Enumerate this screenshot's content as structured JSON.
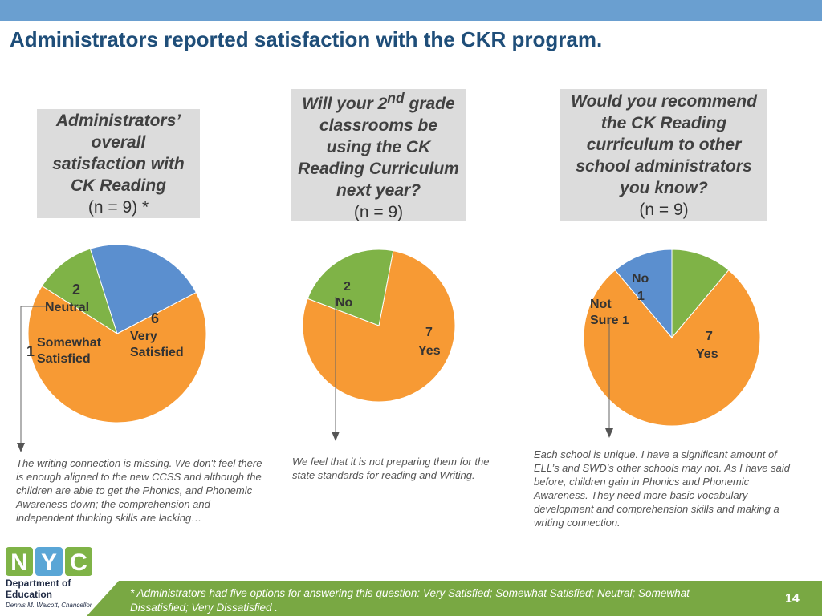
{
  "title": "Administrators reported satisfaction with the CKR program.",
  "questions": [
    {
      "lines": [
        "Administrators’",
        "overall",
        "satisfaction with",
        "CK Reading"
      ],
      "n": "(n = 9) *"
    },
    {
      "lines_html": [
        "Will your 2<sup>nd</sup> grade",
        "classrooms be",
        "using the CK",
        "Reading Curriculum",
        "next year?"
      ],
      "n": "(n = 9)"
    },
    {
      "lines": [
        "Would you recommend",
        "the CK Reading",
        "curriculum to other",
        "school administrators",
        "you know?"
      ],
      "n": "(n = 9)"
    }
  ],
  "chart_data": [
    {
      "type": "pie",
      "title": "Administrators’ overall satisfaction with CK Reading (n = 9) *",
      "slices": [
        {
          "label": "Very Satisfied",
          "value": 6,
          "color": "#f79a34"
        },
        {
          "label": "Somewhat Satisfied",
          "value": 1,
          "color": "#7fb347"
        },
        {
          "label": "Neutral",
          "value": 2,
          "color": "#5b8fcf"
        }
      ]
    },
    {
      "type": "pie",
      "title": "Will your 2nd grade classrooms be using the CK Reading Curriculum next year? (n = 9)",
      "slices": [
        {
          "label": "Yes",
          "value": 7,
          "color": "#f79a34"
        },
        {
          "label": "No",
          "value": 2,
          "color": "#7fb347"
        }
      ]
    },
    {
      "type": "pie",
      "title": "Would you recommend the CK Reading curriculum to other school administrators you know? (n = 9)",
      "slices": [
        {
          "label": "Yes",
          "value": 7,
          "color": "#f79a34"
        },
        {
          "label": "Not Sure",
          "value": 1,
          "color": "#5b8fcf"
        },
        {
          "label": "No",
          "value": 1,
          "color": "#7fb347"
        }
      ]
    }
  ],
  "pie_labels": {
    "p1_neutral_n": "2",
    "p1_neutral": "Neutral",
    "p1_vs_n": "6",
    "p1_vs_1": "Very",
    "p1_vs_2": "Satisfied",
    "p1_ss_n": "1",
    "p1_ss_1": "Somewhat",
    "p1_ss_2": "Satisfied",
    "p2_no_n": "2",
    "p2_no": "No",
    "p2_yes_n": "7",
    "p2_yes": "Yes",
    "p3_no": "No",
    "p3_no_n": "1",
    "p3_ns_1": "Not",
    "p3_ns_2": "Sure",
    "p3_ns_n": "1",
    "p3_yes_n": "7",
    "p3_yes": "Yes"
  },
  "comments": {
    "c1": "The writing connection is missing. We don't feel there is enough aligned to the new CCSS and although the children are able to get the Phonics, and Phonemic Awareness down; the comprehension and independent thinking skills are lacking…",
    "c2": "We feel that it is not preparing them for the state standards for reading and Writing.",
    "c3": "Each school is unique. I have a significant amount of ELL’s and SWD's other schools may not. As I have said before, children gain in Phonics and Phonemic Awareness. They need more basic vocabulary development and comprehension skills and making a writing connection."
  },
  "logo": {
    "letters": [
      "N",
      "Y",
      "C"
    ],
    "line1": "Department of",
    "line2": "Education",
    "line3": "Dennis M. Walcott, Chancellor"
  },
  "footnote": "* Administrators had five options for answering  this question: Very Satisfied; Somewhat Satisfied; Neutral; Somewhat Dissatisfied; Very Dissatisfied .",
  "page_number": "14"
}
